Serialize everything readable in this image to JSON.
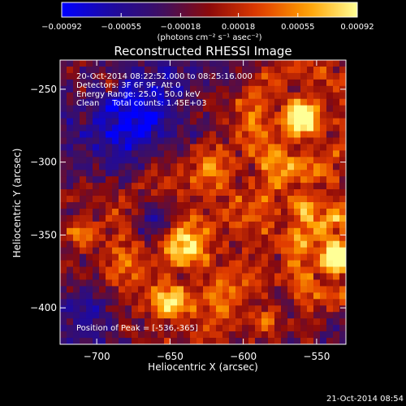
{
  "chart_data": {
    "type": "heatmap",
    "title": "Reconstructed RHESSI Image",
    "xlabel": "Heliocentric X (arcsec)",
    "ylabel": "Heliocentric Y (arcsec)",
    "xlim": [
      -725,
      -530
    ],
    "ylim": [
      -425,
      -230
    ],
    "x_ticks": [
      -700,
      -650,
      -600,
      -550
    ],
    "x_tick_labels": [
      "−700",
      "−650",
      "−600",
      "−550"
    ],
    "y_ticks": [
      -250,
      -300,
      -350,
      -400
    ],
    "y_tick_labels": [
      "−250",
      "−300",
      "−350",
      "−400"
    ],
    "colorbar": {
      "min": -0.00092,
      "max": 0.00092,
      "ticks": [
        -0.00092,
        -0.00055,
        -0.00018,
        0.00018,
        0.00055,
        0.00092
      ],
      "tick_labels": [
        "−0.00092",
        "−0.00055",
        "−0.00018",
        "0.00018",
        "0.00055",
        "0.00092"
      ],
      "units_label": "(photons cm⁻² s⁻¹ asec⁻²)",
      "colors": [
        "#0000ff",
        "#1e0aa0",
        "#3c0f64",
        "#8c0a0a",
        "#e13c00",
        "#ffa000",
        "#ffff96"
      ]
    },
    "annotations": {
      "time_range": "20-Oct-2014 08:22:52.000 to 08:25:16.000",
      "detectors": "Detectors: 3F 6F 9F, Att 0",
      "energy_range": "Energy Range: 25.0 - 50.0 keV",
      "clean_counts": "Clean     Total counts: 1.45E+03",
      "peak": "Position of Peak = [-536,-365]"
    },
    "peak": {
      "x": -536,
      "y": -365
    },
    "grid": false
  },
  "footer": {
    "timestamp": "21-Oct-2014 08:54"
  }
}
